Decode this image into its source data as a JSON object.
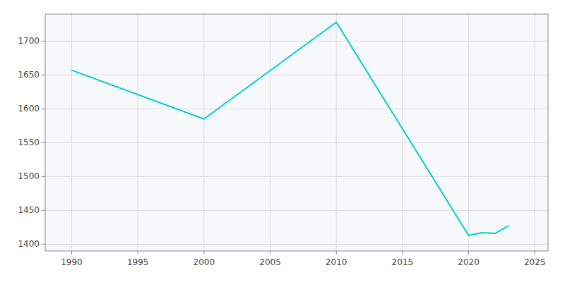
{
  "chart_data": {
    "type": "line",
    "x": [
      1990,
      2000,
      2010,
      2020,
      2021,
      2022,
      2023
    ],
    "values": [
      1657,
      1585,
      1728,
      1413,
      1417,
      1416,
      1427
    ],
    "color": "#00CED1",
    "xlim": [
      1988,
      2026
    ],
    "ylim": [
      1390,
      1740
    ],
    "xticks": [
      1990,
      1995,
      2000,
      2005,
      2010,
      2015,
      2020,
      2025
    ],
    "yticks": [
      1400,
      1450,
      1500,
      1550,
      1600,
      1650,
      1700
    ],
    "grid": true
  }
}
